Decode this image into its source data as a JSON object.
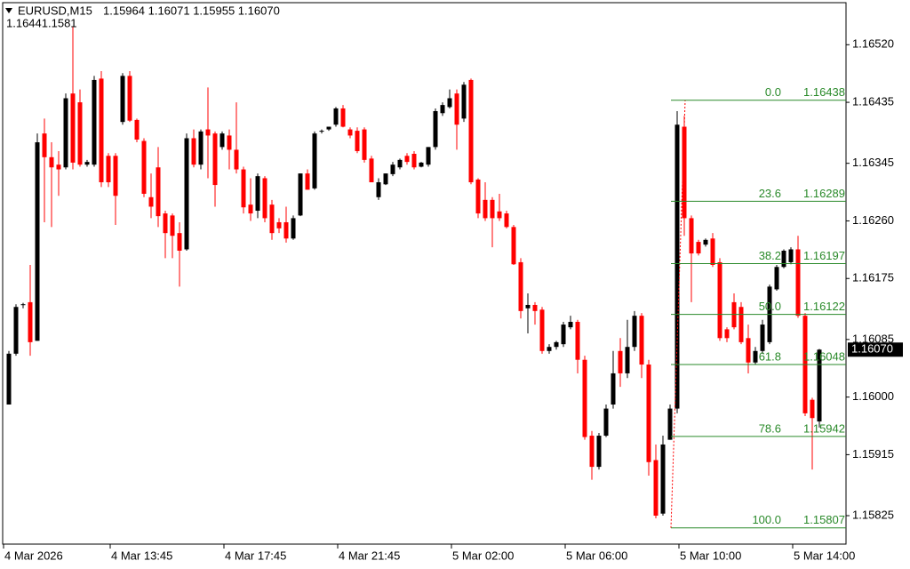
{
  "chart_data": {
    "type": "candlestick",
    "symbol": "EURUSD,M15",
    "header_values": "1.15964 1.16071 1.15955 1.16070",
    "subheader": "1.16441.1581",
    "up_color": "#000000",
    "down_color": "#ff0000",
    "ylim": [
      1.15783,
      1.16586
    ],
    "yticks": [
      {
        "value": 1.1652,
        "label": "1.16520"
      },
      {
        "value": 1.16435,
        "label": "1.16435"
      },
      {
        "value": 1.16345,
        "label": "1.16345"
      },
      {
        "value": 1.1626,
        "label": "1.16260"
      },
      {
        "value": 1.16175,
        "label": "1.16175"
      },
      {
        "value": 1.16085,
        "label": "1.16085"
      },
      {
        "value": 1.16,
        "label": "1.16000"
      },
      {
        "value": 1.15915,
        "label": "1.15915"
      },
      {
        "value": 1.15825,
        "label": "1.15825"
      }
    ],
    "xticks": [
      {
        "value": 0,
        "label": "4 Mar 2026"
      },
      {
        "value": 15,
        "label": "4 Mar 13:45"
      },
      {
        "value": 31,
        "label": "4 Mar 17:45"
      },
      {
        "value": 47,
        "label": "4 Mar 21:45"
      },
      {
        "value": 63,
        "label": "5 Mar 02:00"
      },
      {
        "value": 79,
        "label": "5 Mar 06:00"
      },
      {
        "value": 95,
        "label": "5 Mar 10:00"
      },
      {
        "value": 111,
        "label": "5 Mar 14:00"
      }
    ],
    "current_price": {
      "value": 1.1607,
      "label": "1.16070"
    },
    "fib_color": "#2a8a2a",
    "fib_levels": [
      {
        "level": "0.0",
        "price": 1.16438
      },
      {
        "level": "23.6",
        "price": 1.16289
      },
      {
        "level": "38.2",
        "price": 1.16197
      },
      {
        "level": "50.0",
        "price": 1.16122
      },
      {
        "level": "61.8",
        "price": 1.16048
      },
      {
        "level": "78.6",
        "price": 1.15942
      },
      {
        "level": "100.0",
        "price": 1.15807
      }
    ],
    "ohlc": [
      [
        1.15989,
        1.16068,
        1.15989,
        1.16064
      ],
      [
        1.16064,
        1.16137,
        1.16061,
        1.16133
      ],
      [
        1.16136,
        1.16139,
        1.16131,
        1.16137
      ],
      [
        1.1614,
        1.16195,
        1.16061,
        1.16081
      ],
      [
        1.16083,
        1.16389,
        1.16083,
        1.16376
      ],
      [
        1.16389,
        1.16411,
        1.16258,
        1.16354
      ],
      [
        1.16354,
        1.16376,
        1.16251,
        1.16339
      ],
      [
        1.16343,
        1.16363,
        1.16297,
        1.16336
      ],
      [
        1.16339,
        1.16448,
        1.16336,
        1.16441
      ],
      [
        1.16448,
        1.16546,
        1.16336,
        1.16346
      ],
      [
        1.16435,
        1.16454,
        1.1634,
        1.16343
      ],
      [
        1.16343,
        1.1635,
        1.1634,
        1.16347
      ],
      [
        1.16343,
        1.16474,
        1.1634,
        1.16468
      ],
      [
        1.1647,
        1.16481,
        1.1631,
        1.16317
      ],
      [
        1.16356,
        1.1636,
        1.1631,
        1.16317
      ],
      [
        1.16356,
        1.1636,
        1.16254,
        1.16297
      ],
      [
        1.16406,
        1.16478,
        1.16402,
        1.16474
      ],
      [
        1.16474,
        1.16481,
        1.16406,
        1.16408
      ],
      [
        1.16409,
        1.16411,
        1.16376,
        1.1638
      ],
      [
        1.16378,
        1.16382,
        1.16295,
        1.163
      ],
      [
        1.16295,
        1.1633,
        1.16264,
        1.16281
      ],
      [
        1.16339,
        1.16369,
        1.16251,
        1.16267
      ],
      [
        1.16271,
        1.16275,
        1.16205,
        1.16242
      ],
      [
        1.16268,
        1.16271,
        1.16205,
        1.16238
      ],
      [
        1.16242,
        1.16258,
        1.16163,
        1.16216
      ],
      [
        1.16218,
        1.16389,
        1.16216,
        1.16382
      ],
      [
        1.16382,
        1.16395,
        1.16339,
        1.16343
      ],
      [
        1.16343,
        1.16395,
        1.16336,
        1.16392
      ],
      [
        1.16395,
        1.16457,
        1.16323,
        1.16386
      ],
      [
        1.16389,
        1.16392,
        1.16281,
        1.16313
      ],
      [
        1.16369,
        1.16392,
        1.16365,
        1.16389
      ],
      [
        1.16386,
        1.16395,
        1.16336,
        1.16365
      ],
      [
        1.16365,
        1.16435,
        1.1633,
        1.16336
      ],
      [
        1.16336,
        1.1634,
        1.16271,
        1.1628
      ],
      [
        1.16284,
        1.16323,
        1.1626,
        1.16271
      ],
      [
        1.16275,
        1.1633,
        1.16264,
        1.16326
      ],
      [
        1.16323,
        1.16326,
        1.16258,
        1.16264
      ],
      [
        1.16284,
        1.16291,
        1.16232,
        1.16242
      ],
      [
        1.16258,
        1.16264,
        1.16242,
        1.16249
      ],
      [
        1.16258,
        1.16281,
        1.16228,
        1.16234
      ],
      [
        1.16234,
        1.16268,
        1.16232,
        1.16264
      ],
      [
        1.16268,
        1.1633,
        1.16267,
        1.1633
      ],
      [
        1.1633,
        1.16336,
        1.16306,
        1.16306
      ],
      [
        1.16308,
        1.16392,
        1.16306,
        1.16389
      ],
      [
        1.16392,
        1.16395,
        1.16389,
        1.16393
      ],
      [
        1.16395,
        1.16399,
        1.16393,
        1.16399
      ],
      [
        1.16402,
        1.16428,
        1.16399,
        1.16426
      ],
      [
        1.16426,
        1.16431,
        1.16398,
        1.16399
      ],
      [
        1.16395,
        1.16398,
        1.16382,
        1.16386
      ],
      [
        1.16393,
        1.16398,
        1.1636,
        1.16363
      ],
      [
        1.16395,
        1.16398,
        1.16346,
        1.1635
      ],
      [
        1.16352,
        1.16356,
        1.16317,
        1.16317
      ],
      [
        1.16295,
        1.16323,
        1.16291,
        1.16317
      ],
      [
        1.16314,
        1.1633,
        1.16313,
        1.1633
      ],
      [
        1.16329,
        1.16347,
        1.16326,
        1.16343
      ],
      [
        1.16339,
        1.16352,
        1.16336,
        1.1635
      ],
      [
        1.16356,
        1.1636,
        1.16343,
        1.16347
      ],
      [
        1.16359,
        1.16363,
        1.16336,
        1.16339
      ],
      [
        1.1634,
        1.16347,
        1.16339,
        1.16346
      ],
      [
        1.16343,
        1.16369,
        1.1634,
        1.16369
      ],
      [
        1.16369,
        1.16426,
        1.16365,
        1.16422
      ],
      [
        1.16419,
        1.16435,
        1.16415,
        1.16431
      ],
      [
        1.16428,
        1.16454,
        1.16426,
        1.16441
      ],
      [
        1.16448,
        1.16454,
        1.16365,
        1.16402
      ],
      [
        1.16411,
        1.16465,
        1.16406,
        1.16461
      ],
      [
        1.16468,
        1.1647,
        1.16314,
        1.16317
      ],
      [
        1.16321,
        1.16323,
        1.16264,
        1.16271
      ],
      [
        1.16291,
        1.16317,
        1.1626,
        1.16264
      ],
      [
        1.16291,
        1.16295,
        1.16221,
        1.16264
      ],
      [
        1.16274,
        1.163,
        1.1626,
        1.16264
      ],
      [
        1.16271,
        1.16275,
        1.16249,
        1.16251
      ],
      [
        1.16251,
        1.16254,
        1.16195,
        1.16196
      ],
      [
        1.16199,
        1.16205,
        1.16116,
        1.16127
      ],
      [
        1.16131,
        1.16153,
        1.16094,
        1.16136
      ],
      [
        1.16136,
        1.1614,
        1.16107,
        1.16127
      ],
      [
        1.16129,
        1.16133,
        1.16064,
        1.16068
      ],
      [
        1.16068,
        1.16078,
        1.16064,
        1.16074
      ],
      [
        1.16074,
        1.16083,
        1.1607,
        1.16081
      ],
      [
        1.16078,
        1.16111,
        1.16074,
        1.16107
      ],
      [
        1.16103,
        1.1612,
        1.161,
        1.16111
      ],
      [
        1.16111,
        1.16114,
        1.16035,
        1.16055
      ],
      [
        1.16055,
        1.16061,
        1.15937,
        1.15941
      ],
      [
        1.15943,
        1.1595,
        1.15878,
        1.15897
      ],
      [
        1.15897,
        1.15947,
        1.15893,
        1.15943
      ],
      [
        1.15943,
        1.15989,
        1.15941,
        1.15983
      ],
      [
        1.15989,
        1.16068,
        1.15983,
        1.16035
      ],
      [
        1.16068,
        1.16087,
        1.16015,
        1.16035
      ],
      [
        1.16035,
        1.16114,
        1.16028,
        1.16074
      ],
      [
        1.16074,
        1.16127,
        1.16068,
        1.1612
      ],
      [
        1.1612,
        1.16124,
        1.16028,
        1.16048
      ],
      [
        1.16048,
        1.16055,
        1.15884,
        1.15904
      ],
      [
        1.15907,
        1.1593,
        1.15821,
        1.15825
      ],
      [
        1.15828,
        1.15943,
        1.15825,
        1.1593
      ],
      [
        1.15937,
        1.15989,
        1.15937,
        1.15983
      ],
      [
        1.15983,
        1.16422,
        1.15976,
        1.16402
      ],
      [
        1.16399,
        1.16415,
        1.16238,
        1.16264
      ],
      [
        1.16264,
        1.16268,
        1.1614,
        1.16212
      ],
      [
        1.16229,
        1.16232,
        1.16209,
        1.16212
      ],
      [
        1.16225,
        1.16234,
        1.16222,
        1.16232
      ],
      [
        1.16234,
        1.16242,
        1.16192,
        1.16195
      ],
      [
        1.16199,
        1.16205,
        1.16083,
        1.16087
      ],
      [
        1.161,
        1.16103,
        1.16081,
        1.16087
      ],
      [
        1.1614,
        1.16153,
        1.161,
        1.16103
      ],
      [
        1.16133,
        1.1614,
        1.16078,
        1.16081
      ],
      [
        1.16087,
        1.16107,
        1.16035,
        1.16051
      ],
      [
        1.16051,
        1.16074,
        1.16048,
        1.16068
      ],
      [
        1.16068,
        1.16114,
        1.16064,
        1.16107
      ],
      [
        1.16081,
        1.16166,
        1.16078,
        1.16163
      ],
      [
        1.16159,
        1.16195,
        1.16157,
        1.16192
      ],
      [
        1.16192,
        1.16218,
        1.1619,
        1.16216
      ],
      [
        1.16199,
        1.16221,
        1.16196,
        1.16218
      ],
      [
        1.16218,
        1.16238,
        1.16117,
        1.1612
      ],
      [
        1.1612,
        1.16124,
        1.15972,
        1.15976
      ],
      [
        1.15996,
        1.15999,
        1.15893,
        1.15969
      ],
      [
        1.15964,
        1.16071,
        1.15955,
        1.1607
      ]
    ]
  }
}
